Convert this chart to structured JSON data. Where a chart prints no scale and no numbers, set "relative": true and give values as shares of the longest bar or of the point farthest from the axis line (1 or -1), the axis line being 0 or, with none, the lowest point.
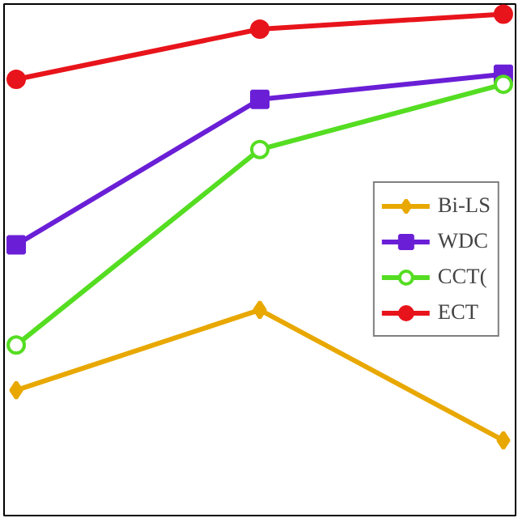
{
  "chart_data": {
    "type": "line",
    "relative": true,
    "categories": [
      null,
      null,
      null
    ],
    "tick_labels": false,
    "grid": false,
    "legend": "right",
    "series": [
      {
        "name": "Bi-LS",
        "color": "#e8a800",
        "marker": "diamond",
        "values": [
          0.25,
          0.41,
          0.15
        ]
      },
      {
        "name": "WDC",
        "color": "#6a1fd6",
        "marker": "square",
        "values": [
          0.54,
          0.83,
          0.88
        ]
      },
      {
        "name": "CCT(",
        "color": "#55dd22",
        "marker": "circle",
        "values": [
          0.34,
          0.73,
          0.86
        ]
      },
      {
        "name": "ECT",
        "color": "#e8141b",
        "marker": "circle",
        "values": [
          0.87,
          0.97,
          1.0
        ]
      }
    ]
  }
}
